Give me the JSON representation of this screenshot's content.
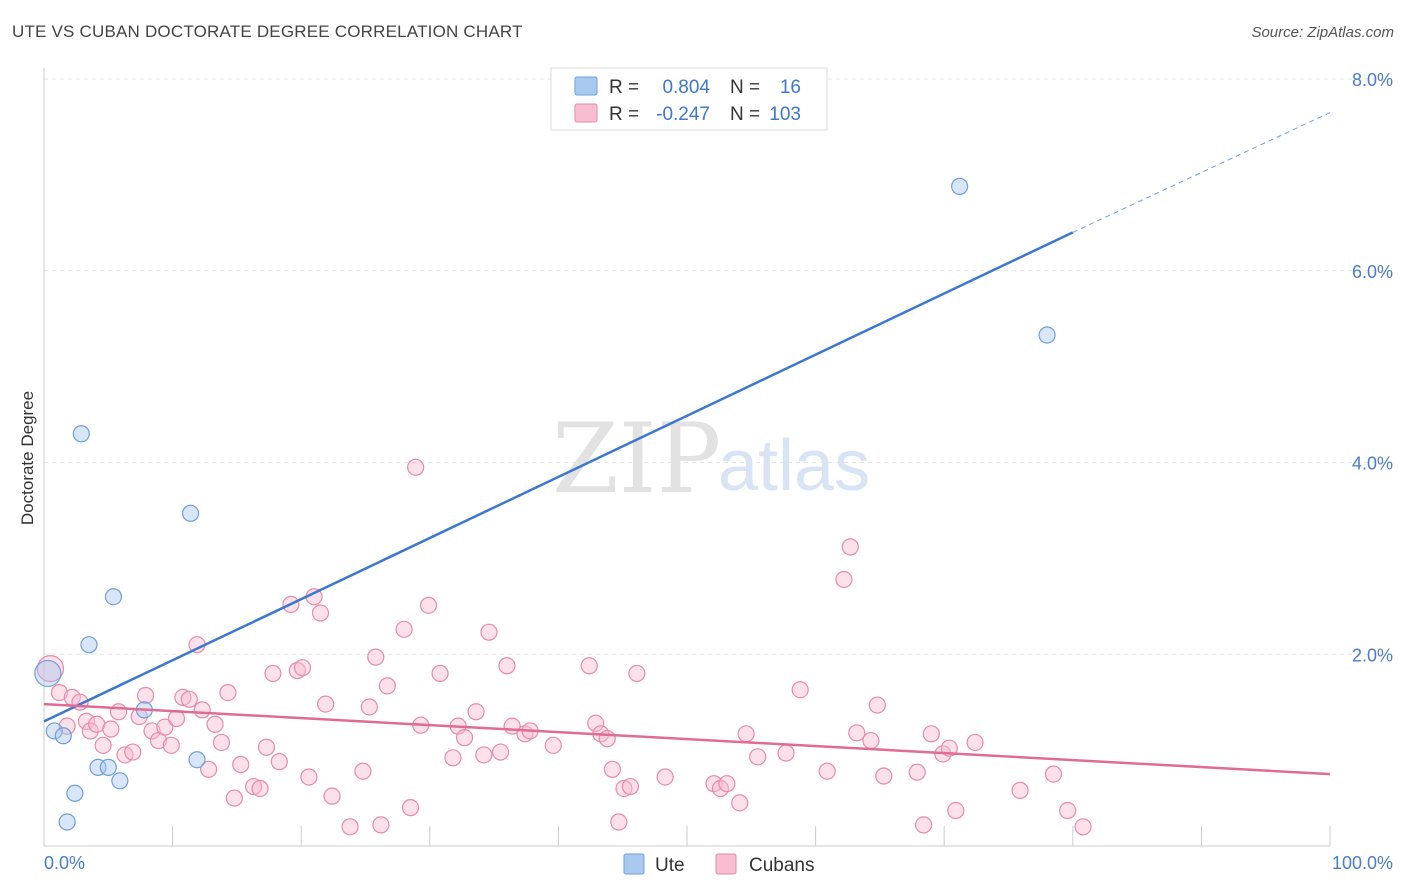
{
  "header": {
    "title": "UTE VS CUBAN DOCTORATE DEGREE CORRELATION CHART",
    "source": "Source: ZipAtlas.com"
  },
  "watermark": {
    "zip": "ZIP",
    "atlas": "atlas"
  },
  "chart_data": {
    "type": "scatter",
    "ylabel": "Doctorate Degree",
    "xlim": [
      0,
      100
    ],
    "ylim": [
      0,
      8
    ],
    "x_tick_labels": [
      {
        "value": 0,
        "label": "0.0%"
      },
      {
        "value": 100,
        "label": "100.0%"
      }
    ],
    "y_ticks": [
      {
        "value": 2,
        "label": "2.0%"
      },
      {
        "value": 4,
        "label": "4.0%"
      },
      {
        "value": 6,
        "label": "6.0%"
      },
      {
        "value": 8,
        "label": "8.0%"
      }
    ],
    "grid": true,
    "legend_stats": [
      {
        "r_label": "R =",
        "r_value": "0.804",
        "n_label": "N =",
        "n_value": "16",
        "color": "#a9c8f0",
        "border": "#6f9fdc"
      },
      {
        "r_label": "R =",
        "r_value": "-0.247",
        "n_label": "N =",
        "n_value": "103",
        "color": "#f8bdd0",
        "border": "#e88aa9"
      }
    ],
    "series": [
      {
        "name": "Ute",
        "color": "#a9c8f0",
        "stroke": "#6f9fdc",
        "line_color": "#3d78d0",
        "trend": {
          "x": [
            0,
            80
          ],
          "y": [
            1.3,
            6.4
          ],
          "dashed_to": [
            100,
            7.65
          ]
        },
        "points": [
          {
            "x": 0.3,
            "y": 1.8,
            "big": true
          },
          {
            "x": 0.8,
            "y": 1.2
          },
          {
            "x": 1.5,
            "y": 1.15
          },
          {
            "x": 1.8,
            "y": 0.25
          },
          {
            "x": 2.4,
            "y": 0.55
          },
          {
            "x": 2.9,
            "y": 4.3
          },
          {
            "x": 3.5,
            "y": 2.1
          },
          {
            "x": 4.2,
            "y": 0.82
          },
          {
            "x": 5.0,
            "y": 0.82
          },
          {
            "x": 5.4,
            "y": 2.6
          },
          {
            "x": 5.9,
            "y": 0.68
          },
          {
            "x": 7.8,
            "y": 1.42
          },
          {
            "x": 11.4,
            "y": 3.47
          },
          {
            "x": 11.9,
            "y": 0.9
          },
          {
            "x": 71.2,
            "y": 6.88
          },
          {
            "x": 78.0,
            "y": 5.33
          }
        ]
      },
      {
        "name": "Cubans",
        "color": "#f8bdd0",
        "stroke": "#e88aa9",
        "line_color": "#e06b93",
        "trend": {
          "x": [
            0,
            100
          ],
          "y": [
            1.48,
            0.75
          ]
        },
        "points": [
          {
            "x": 0.5,
            "y": 1.85,
            "big": true
          },
          {
            "x": 1.2,
            "y": 1.6
          },
          {
            "x": 1.8,
            "y": 1.25
          },
          {
            "x": 2.2,
            "y": 1.55
          },
          {
            "x": 2.8,
            "y": 1.5
          },
          {
            "x": 3.3,
            "y": 1.3
          },
          {
            "x": 3.6,
            "y": 1.2
          },
          {
            "x": 4.1,
            "y": 1.27
          },
          {
            "x": 4.6,
            "y": 1.05
          },
          {
            "x": 5.2,
            "y": 1.22
          },
          {
            "x": 5.8,
            "y": 1.4
          },
          {
            "x": 6.3,
            "y": 0.95
          },
          {
            "x": 6.9,
            "y": 0.98
          },
          {
            "x": 7.4,
            "y": 1.35
          },
          {
            "x": 7.9,
            "y": 1.57
          },
          {
            "x": 8.4,
            "y": 1.2
          },
          {
            "x": 8.9,
            "y": 1.1
          },
          {
            "x": 9.4,
            "y": 1.24
          },
          {
            "x": 9.9,
            "y": 1.05
          },
          {
            "x": 10.3,
            "y": 1.33
          },
          {
            "x": 10.8,
            "y": 1.55
          },
          {
            "x": 11.3,
            "y": 1.53
          },
          {
            "x": 11.9,
            "y": 2.1
          },
          {
            "x": 12.3,
            "y": 1.42
          },
          {
            "x": 12.8,
            "y": 0.8
          },
          {
            "x": 13.3,
            "y": 1.27
          },
          {
            "x": 13.8,
            "y": 1.08
          },
          {
            "x": 14.3,
            "y": 1.6
          },
          {
            "x": 14.8,
            "y": 0.5
          },
          {
            "x": 15.3,
            "y": 0.85
          },
          {
            "x": 16.3,
            "y": 0.62
          },
          {
            "x": 16.8,
            "y": 0.6
          },
          {
            "x": 17.3,
            "y": 1.03
          },
          {
            "x": 17.8,
            "y": 1.8
          },
          {
            "x": 18.3,
            "y": 0.88
          },
          {
            "x": 19.2,
            "y": 2.52
          },
          {
            "x": 19.7,
            "y": 1.83
          },
          {
            "x": 20.1,
            "y": 1.86
          },
          {
            "x": 20.6,
            "y": 0.72
          },
          {
            "x": 21.0,
            "y": 2.6
          },
          {
            "x": 21.5,
            "y": 2.43
          },
          {
            "x": 21.9,
            "y": 1.48
          },
          {
            "x": 22.4,
            "y": 0.52
          },
          {
            "x": 23.8,
            "y": 0.2
          },
          {
            "x": 24.8,
            "y": 0.78
          },
          {
            "x": 25.3,
            "y": 1.45
          },
          {
            "x": 25.8,
            "y": 1.97
          },
          {
            "x": 26.2,
            "y": 0.22
          },
          {
            "x": 26.7,
            "y": 1.67
          },
          {
            "x": 28.0,
            "y": 2.26
          },
          {
            "x": 28.5,
            "y": 0.4
          },
          {
            "x": 28.9,
            "y": 3.95
          },
          {
            "x": 29.3,
            "y": 1.26
          },
          {
            "x": 29.9,
            "y": 2.51
          },
          {
            "x": 30.8,
            "y": 1.8
          },
          {
            "x": 31.8,
            "y": 0.92
          },
          {
            "x": 32.2,
            "y": 1.25
          },
          {
            "x": 32.7,
            "y": 1.13
          },
          {
            "x": 33.6,
            "y": 1.4
          },
          {
            "x": 34.2,
            "y": 0.95
          },
          {
            "x": 34.6,
            "y": 2.23
          },
          {
            "x": 35.5,
            "y": 0.98
          },
          {
            "x": 36.0,
            "y": 1.88
          },
          {
            "x": 36.4,
            "y": 1.25
          },
          {
            "x": 37.4,
            "y": 1.17
          },
          {
            "x": 37.8,
            "y": 1.2
          },
          {
            "x": 39.6,
            "y": 1.05
          },
          {
            "x": 42.4,
            "y": 1.88
          },
          {
            "x": 42.9,
            "y": 1.28
          },
          {
            "x": 43.3,
            "y": 1.17
          },
          {
            "x": 43.8,
            "y": 1.12
          },
          {
            "x": 44.2,
            "y": 0.8
          },
          {
            "x": 44.7,
            "y": 0.25
          },
          {
            "x": 45.1,
            "y": 0.6
          },
          {
            "x": 45.6,
            "y": 0.62
          },
          {
            "x": 46.1,
            "y": 1.8
          },
          {
            "x": 48.3,
            "y": 0.72
          },
          {
            "x": 52.1,
            "y": 0.65
          },
          {
            "x": 52.6,
            "y": 0.6
          },
          {
            "x": 53.1,
            "y": 0.65
          },
          {
            "x": 54.1,
            "y": 0.45
          },
          {
            "x": 54.6,
            "y": 1.17
          },
          {
            "x": 55.5,
            "y": 0.93
          },
          {
            "x": 57.7,
            "y": 0.97
          },
          {
            "x": 58.8,
            "y": 1.63
          },
          {
            "x": 60.9,
            "y": 0.78
          },
          {
            "x": 62.2,
            "y": 2.78
          },
          {
            "x": 62.7,
            "y": 3.12
          },
          {
            "x": 63.2,
            "y": 1.18
          },
          {
            "x": 64.3,
            "y": 1.1
          },
          {
            "x": 64.8,
            "y": 1.47
          },
          {
            "x": 65.3,
            "y": 0.73
          },
          {
            "x": 67.9,
            "y": 0.77
          },
          {
            "x": 68.4,
            "y": 0.22
          },
          {
            "x": 69.0,
            "y": 1.17
          },
          {
            "x": 69.9,
            "y": 0.96
          },
          {
            "x": 70.4,
            "y": 1.02
          },
          {
            "x": 70.9,
            "y": 0.37
          },
          {
            "x": 72.4,
            "y": 1.08
          },
          {
            "x": 75.9,
            "y": 0.58
          },
          {
            "x": 78.5,
            "y": 0.75
          },
          {
            "x": 79.6,
            "y": 0.37
          },
          {
            "x": 80.8,
            "y": 0.2
          }
        ]
      }
    ]
  }
}
